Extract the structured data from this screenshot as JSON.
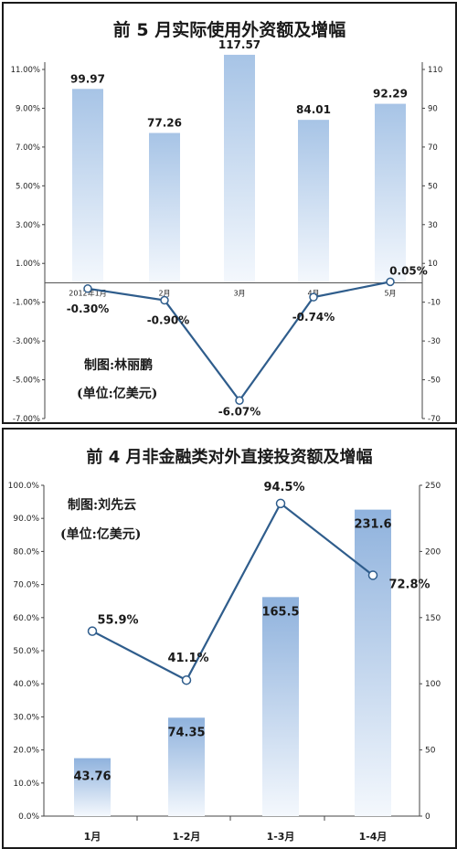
{
  "chart_data": [
    {
      "type": "bar",
      "title": "前 5 月实际使用外资额及增幅",
      "credit": "制图:林丽鹏",
      "unit_note": "(单位:亿美元)",
      "categories": [
        "2012年1月",
        "2月",
        "3月",
        "4月",
        "5月"
      ],
      "series": [
        {
          "type": "bar",
          "axis": "right",
          "values": [
            99.97,
            77.26,
            117.57,
            84.01,
            92.29
          ],
          "labels": [
            "99.97",
            "77.26",
            "117.57",
            "84.01",
            "92.29"
          ]
        },
        {
          "type": "line",
          "axis": "left",
          "values": [
            -0.3,
            -0.9,
            -6.07,
            -0.74,
            0.05
          ],
          "labels": [
            "-0.30%",
            "-0.90%",
            "-6.07%",
            "-0.74%",
            "0.05%"
          ]
        }
      ],
      "left_axis": {
        "ylim": [
          -7,
          11
        ],
        "ticks": [
          "11.00%",
          "9.00%",
          "7.00%",
          "5.00%",
          "3.00%",
          "1.00%",
          "-1.00%",
          "-3.00%",
          "-5.00%",
          "-7.00%"
        ]
      },
      "right_axis": {
        "ylim": [
          -70,
          110
        ],
        "ticks": [
          "110",
          "90",
          "70",
          "50",
          "30",
          "10",
          "-10",
          "-30",
          "-50",
          "-70"
        ]
      },
      "bar_color": "#a7c4e6",
      "line_color": "#2f5d8c"
    },
    {
      "type": "bar",
      "title": "前 4 月非金融类对外直接投资额及增幅",
      "credit": "制图:刘先云",
      "unit_note": "(单位:亿美元)",
      "categories": [
        "1月",
        "1-2月",
        "1-3月",
        "1-4月"
      ],
      "series": [
        {
          "type": "bar",
          "axis": "right",
          "values": [
            43.76,
            74.35,
            165.5,
            231.6
          ],
          "labels": [
            "43.76",
            "74.35",
            "165.5",
            "231.6"
          ]
        },
        {
          "type": "line",
          "axis": "left",
          "values": [
            55.9,
            41.1,
            94.5,
            72.8
          ],
          "labels": [
            "55.9%",
            "41.1%",
            "94.5%",
            "72.8%"
          ]
        }
      ],
      "left_axis": {
        "ylim": [
          0,
          100
        ],
        "ticks": [
          "100.0%",
          "90.0%",
          "80.0%",
          "70.0%",
          "60.0%",
          "50.0%",
          "40.0%",
          "30.0%",
          "20.0%",
          "10.0%",
          "0.0%"
        ]
      },
      "right_axis": {
        "ylim": [
          0,
          250
        ],
        "ticks": [
          "250",
          "200",
          "150",
          "100",
          "50",
          "0"
        ]
      },
      "bar_color": "#8fb2dd",
      "line_color": "#2f5d8c"
    }
  ]
}
